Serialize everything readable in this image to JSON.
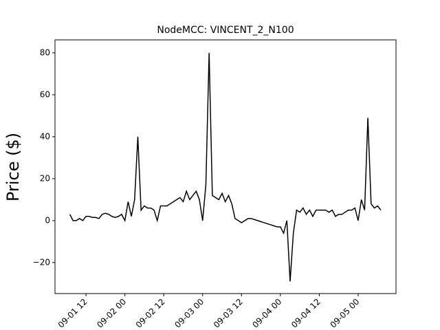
{
  "chart_data": {
    "type": "line",
    "title": "NodeMCC: VINCENT_2_N100",
    "y_label": "Price ($)",
    "x": [
      "09-01 07",
      "09-01 08",
      "09-01 09",
      "09-01 10",
      "09-01 11",
      "09-01 12",
      "09-01 13",
      "09-01 14",
      "09-01 15",
      "09-01 16",
      "09-01 17",
      "09-01 18",
      "09-01 19",
      "09-01 20",
      "09-01 21",
      "09-01 22",
      "09-01 23",
      "09-02 00",
      "09-02 01",
      "09-02 02",
      "09-02 03",
      "09-02 04",
      "09-02 05",
      "09-02 06",
      "09-02 07",
      "09-02 08",
      "09-02 09",
      "09-02 10",
      "09-02 11",
      "09-02 12",
      "09-02 13",
      "09-02 14",
      "09-02 15",
      "09-02 16",
      "09-02 17",
      "09-02 18",
      "09-02 19",
      "09-02 20",
      "09-02 21",
      "09-02 22",
      "09-02 23",
      "09-03 00",
      "09-03 01",
      "09-03 02",
      "09-03 03",
      "09-03 04",
      "09-03 05",
      "09-03 06",
      "09-03 07",
      "09-03 08",
      "09-03 09",
      "09-03 10",
      "09-03 11",
      "09-03 12",
      "09-03 13",
      "09-03 14",
      "09-03 15",
      "09-03 16",
      "09-03 17",
      "09-03 18",
      "09-03 19",
      "09-03 20",
      "09-03 21",
      "09-03 22",
      "09-03 23",
      "09-04 00",
      "09-04 01",
      "09-04 02",
      "09-04 03",
      "09-04 04",
      "09-04 05",
      "09-04 06",
      "09-04 07",
      "09-04 08",
      "09-04 09",
      "09-04 10",
      "09-04 11",
      "09-04 12",
      "09-04 13",
      "09-04 14",
      "09-04 15",
      "09-04 16",
      "09-04 17",
      "09-04 18",
      "09-04 19",
      "09-04 20",
      "09-04 21",
      "09-04 22",
      "09-04 23",
      "09-05 00",
      "09-05 01",
      "09-05 02",
      "09-05 03",
      "09-05 04",
      "09-05 05",
      "09-05 06",
      "09-05 07"
    ],
    "series": [
      {
        "color": "#000000",
        "values": [
          3,
          0,
          0,
          1,
          0,
          2,
          2,
          1.5,
          1.5,
          1,
          3,
          3.5,
          3,
          2,
          1.5,
          2,
          3,
          0,
          9,
          2,
          10,
          40,
          5,
          7,
          6,
          6,
          5,
          0,
          7,
          7,
          7,
          8,
          9,
          10,
          11,
          9,
          14,
          10,
          12,
          14,
          10,
          0,
          17,
          80,
          12,
          11,
          10,
          13,
          9,
          12,
          8,
          1,
          0,
          -1,
          0,
          1,
          1,
          0.5,
          0,
          -0.5,
          -1,
          -1.5,
          -2,
          -2.5,
          -3,
          -3,
          -6,
          0,
          -29,
          -6,
          5,
          4,
          6,
          3,
          5,
          2,
          5,
          5,
          5,
          5,
          4,
          5,
          2,
          3,
          3,
          4,
          5,
          5,
          6,
          0,
          10,
          5,
          49,
          8,
          6,
          7,
          5
        ]
      }
    ],
    "xlim": [
      "09-01 02:26",
      "09-05 11:41"
    ],
    "xticks": [
      "09-01 12",
      "09-02 00",
      "09-02 12",
      "09-03 00",
      "09-03 12",
      "09-04 00",
      "09-04 12",
      "09-05 00"
    ],
    "ylim": [
      -34.8,
      86.2
    ],
    "yticks": [
      {
        "value": -20,
        "label": "−20"
      },
      0,
      20,
      40,
      60,
      80
    ]
  }
}
